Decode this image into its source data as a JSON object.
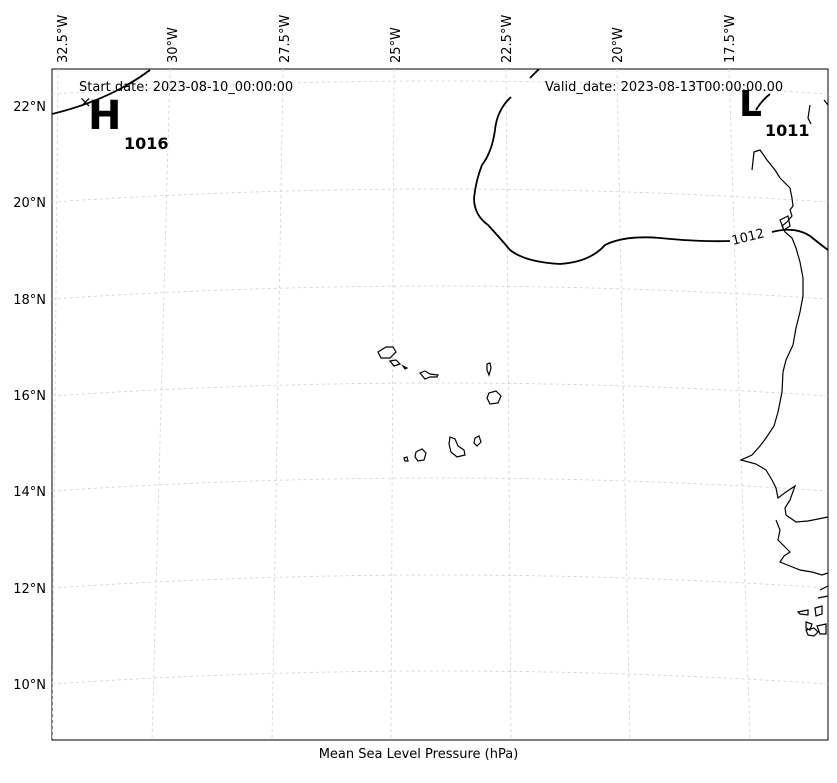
{
  "map": {
    "start_date": "Start date: 2023-08-10_00:00:00",
    "valid_date": "Valid_date: 2023-08-13T00:00:00.00",
    "caption": "Mean Sea Level Pressure (hPa)",
    "lon_labels": [
      "32.5°W",
      "30°W",
      "27.5°W",
      "25°W",
      "22.5°W",
      "20°W",
      "17.5°W"
    ],
    "lat_labels": [
      "22°N",
      "20°N",
      "18°N",
      "16°N",
      "14°N",
      "12°N",
      "10°N"
    ],
    "high": {
      "letter": "H",
      "value": "1016",
      "marker": "×"
    },
    "low": {
      "letter": "L",
      "value": "1011"
    },
    "isobar_label": "1012",
    "colors": {
      "isobar": "#000000",
      "coast": "#000000",
      "grid": "#d0d0d0",
      "frame": "#000000"
    }
  }
}
